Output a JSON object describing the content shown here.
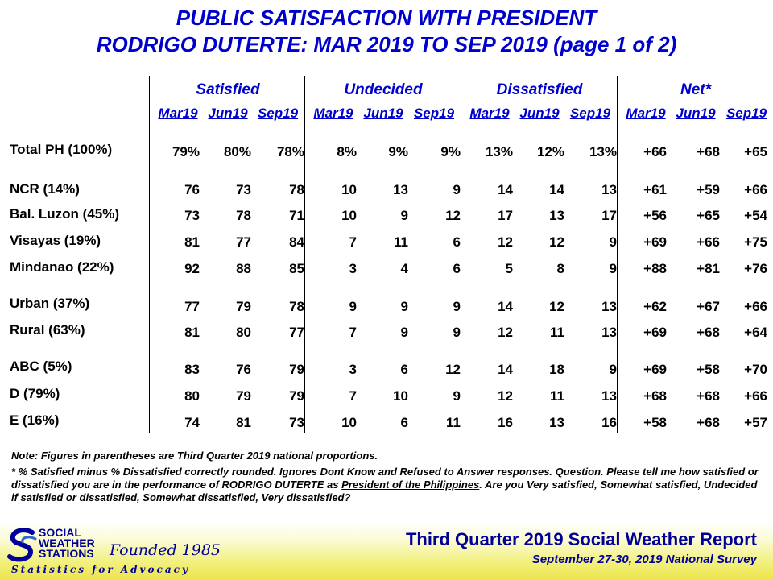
{
  "title": {
    "line1": "PUBLIC SATISFACTION WITH PRESIDENT",
    "line2": "RODRIGO DUTERTE: MAR 2019 TO SEP 2019 (page 1 of 2)"
  },
  "groups": [
    "Satisfied",
    "Undecided",
    "Dissatisfied",
    "Net*"
  ],
  "periods": [
    "Mar19",
    "Jun19",
    "Sep19"
  ],
  "rows": [
    {
      "label": "Total PH (100%)",
      "values": [
        "79%",
        "80%",
        "78%",
        "8%",
        "9%",
        "9%",
        "13%",
        "12%",
        "13%",
        "+66",
        "+68",
        "+65"
      ]
    },
    {
      "label": "NCR (14%)",
      "values": [
        "76",
        "73",
        "78",
        "10",
        "13",
        "9",
        "14",
        "14",
        "13",
        "+61",
        "+59",
        "+66"
      ]
    },
    {
      "label": "Bal. Luzon (45%)",
      "values": [
        "73",
        "78",
        "71",
        "10",
        "9",
        "12",
        "17",
        "13",
        "17",
        "+56",
        "+65",
        "+54"
      ]
    },
    {
      "label": "Visayas (19%)",
      "values": [
        "81",
        "77",
        "84",
        "7",
        "11",
        "6",
        "12",
        "12",
        "9",
        "+69",
        "+66",
        "+75"
      ]
    },
    {
      "label": "Mindanao (22%)",
      "values": [
        "92",
        "88",
        "85",
        "3",
        "4",
        "6",
        "5",
        "8",
        "9",
        "+88",
        "+81",
        "+76"
      ]
    },
    {
      "label": "Urban (37%)",
      "values": [
        "77",
        "79",
        "78",
        "9",
        "9",
        "9",
        "14",
        "12",
        "13",
        "+62",
        "+67",
        "+66"
      ]
    },
    {
      "label": "Rural (63%)",
      "values": [
        "81",
        "80",
        "77",
        "7",
        "9",
        "9",
        "12",
        "11",
        "13",
        "+69",
        "+68",
        "+64"
      ]
    },
    {
      "label": "ABC (5%)",
      "values": [
        "83",
        "76",
        "79",
        "3",
        "6",
        "12",
        "14",
        "18",
        "9",
        "+69",
        "+58",
        "+70"
      ]
    },
    {
      "label": "D (79%)",
      "values": [
        "80",
        "79",
        "79",
        "7",
        "10",
        "9",
        "12",
        "11",
        "13",
        "+68",
        "+68",
        "+66"
      ]
    },
    {
      "label": "E (16%)",
      "values": [
        "74",
        "81",
        "73",
        "10",
        "6",
        "11",
        "16",
        "13",
        "16",
        "+58",
        "+68",
        "+57"
      ]
    }
  ],
  "notes": {
    "note1": "Note: Figures in parentheses are Third Quarter 2019 national proportions.",
    "note2": "* % Satisfied minus % Dissatisfied correctly rounded. Ignores Dont Know and Refused to Answer responses.",
    "question_a": "Question. Please tell me how satisfied or dissatisfied you are in the performance of RODRIGO DUTERTE as",
    "question_u": "President of the Philippines",
    "question_b": ". Are you Very satisfied, Somewhat satisfied, Undecided if satisfied or dissatisfied, Somewhat dissatisfied, Very dissatisfied?"
  },
  "footer": {
    "report_title": "Third Quarter 2019 Social Weather Report",
    "survey_dates": "September 27-30, 2019 National Survey",
    "logo_line1": "SOCIAL",
    "logo_line2": "WEATHER",
    "logo_line3": "STATIONS",
    "founded": "Founded 1985",
    "tagline": "Statistics for Advocacy"
  },
  "colors": {
    "heading_blue": "#0000cc",
    "footer_blue": "#000099",
    "footer_yellow": "#ece44a"
  }
}
